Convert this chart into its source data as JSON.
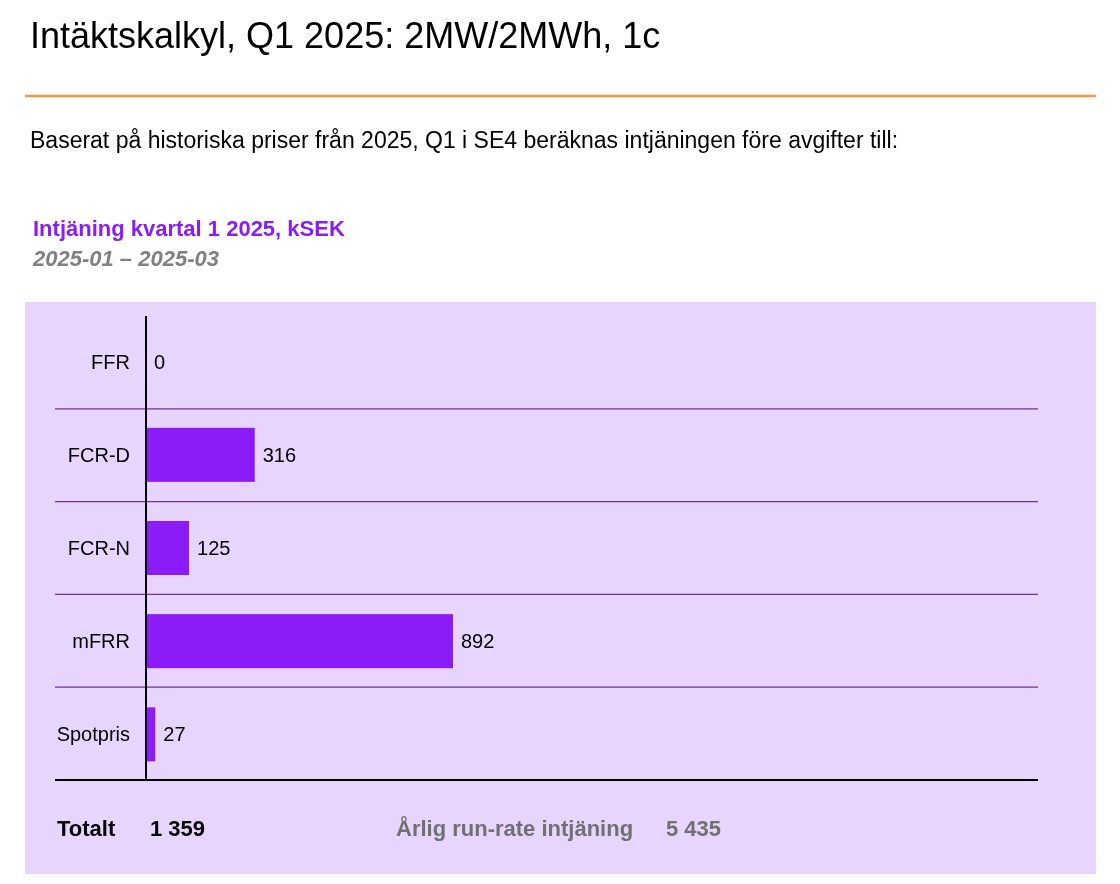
{
  "chart_data": {
    "type": "bar",
    "orientation": "horizontal",
    "title": "Intäktskalkyl, Q1 2025: 2MW/2MWh, 1c",
    "subtitle": "Baserat på historiska priser från 2025, Q1 i SE4 beräknas intjäningen före avgifter till:",
    "categories": [
      "FFR",
      "FCR-D",
      "FCR-N",
      "mFRR",
      "Spotpris"
    ],
    "values": [
      0,
      316,
      125,
      892,
      27
    ],
    "color": "#8b1cf7",
    "data_labels": true,
    "grid": "y",
    "annotations": [
      "Intjäning kvartal 1 2025, kSEK",
      "2025-01 – 2025-03",
      "Totalt",
      "1 359",
      "Årlig run-rate intjäning",
      "5 435"
    ]
  }
}
